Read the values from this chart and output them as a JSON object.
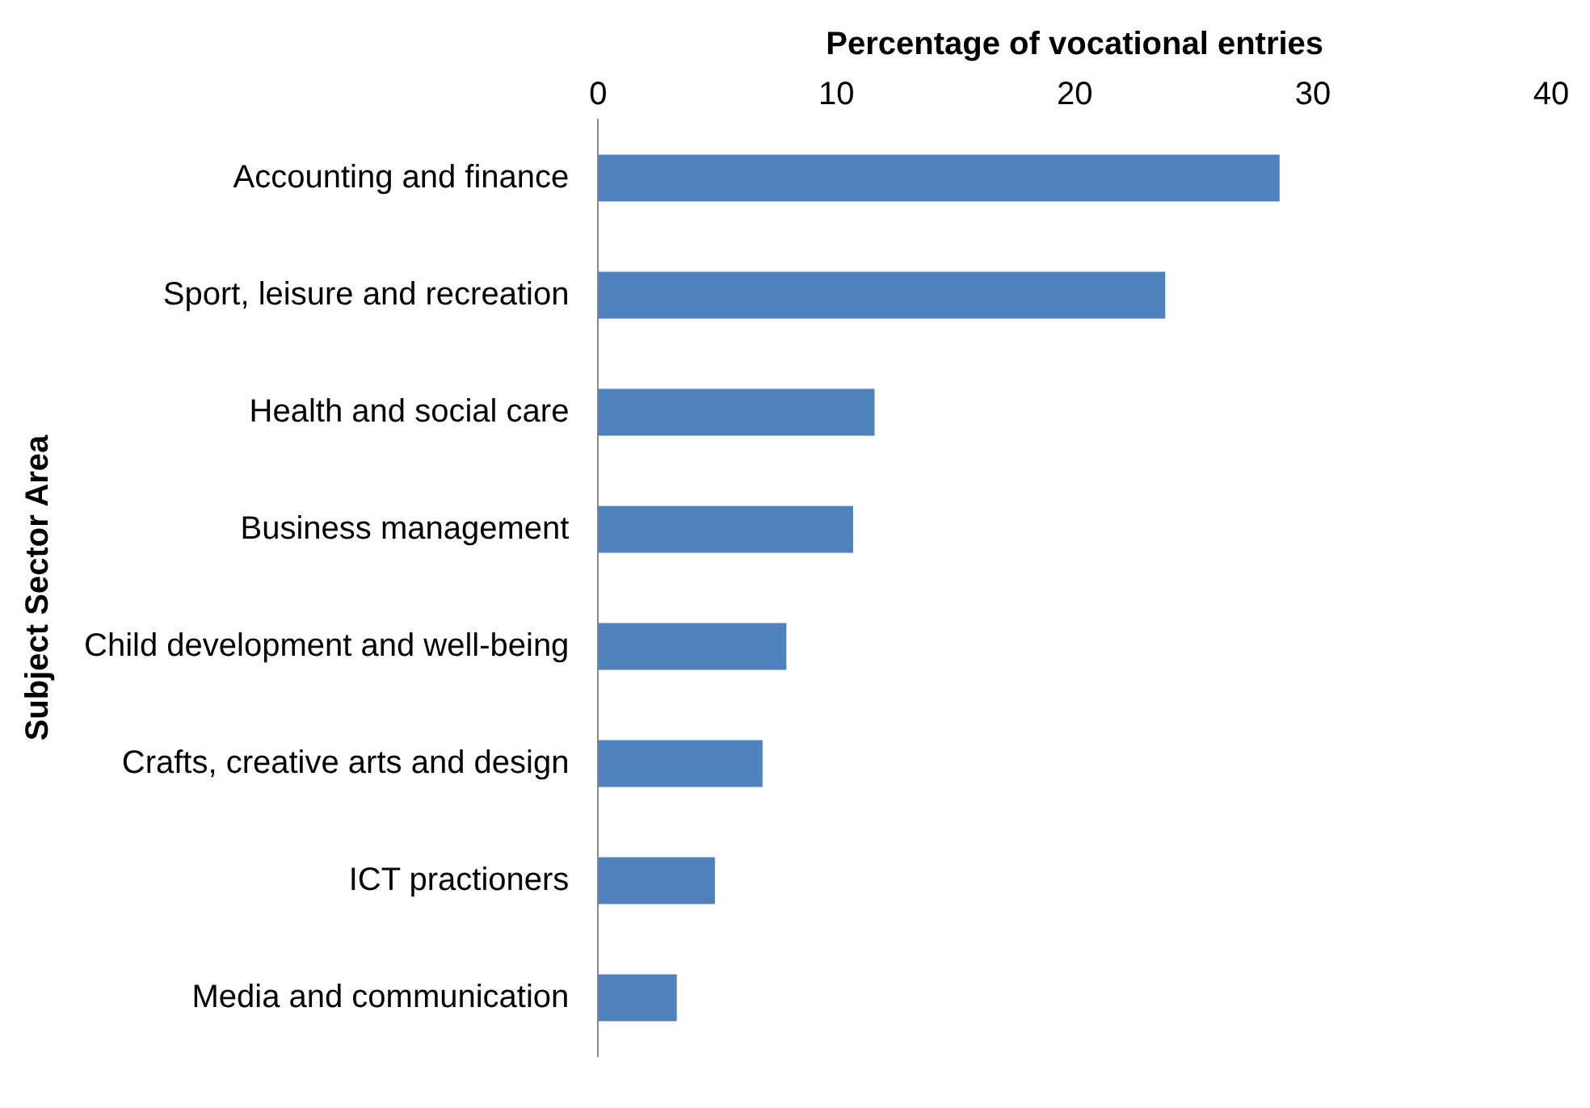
{
  "chart_data": {
    "type": "bar",
    "orientation": "horizontal",
    "xlabel": "Percentage of vocational entries",
    "ylabel": "Subject Sector Area",
    "categories": [
      "Accounting and finance",
      "Sport, leisure and recreation",
      "Health and social care",
      "Business management",
      "Child development and well-being",
      "Crafts, creative arts and design",
      "ICT practioners",
      "Media and communication"
    ],
    "values": [
      28.6,
      23.8,
      11.6,
      10.7,
      7.9,
      6.9,
      4.9,
      3.3
    ],
    "color": "#4f81bd",
    "xlim": [
      0,
      40
    ],
    "xticks": [
      0,
      10,
      20,
      30,
      40
    ],
    "grid": false,
    "legend": false
  }
}
